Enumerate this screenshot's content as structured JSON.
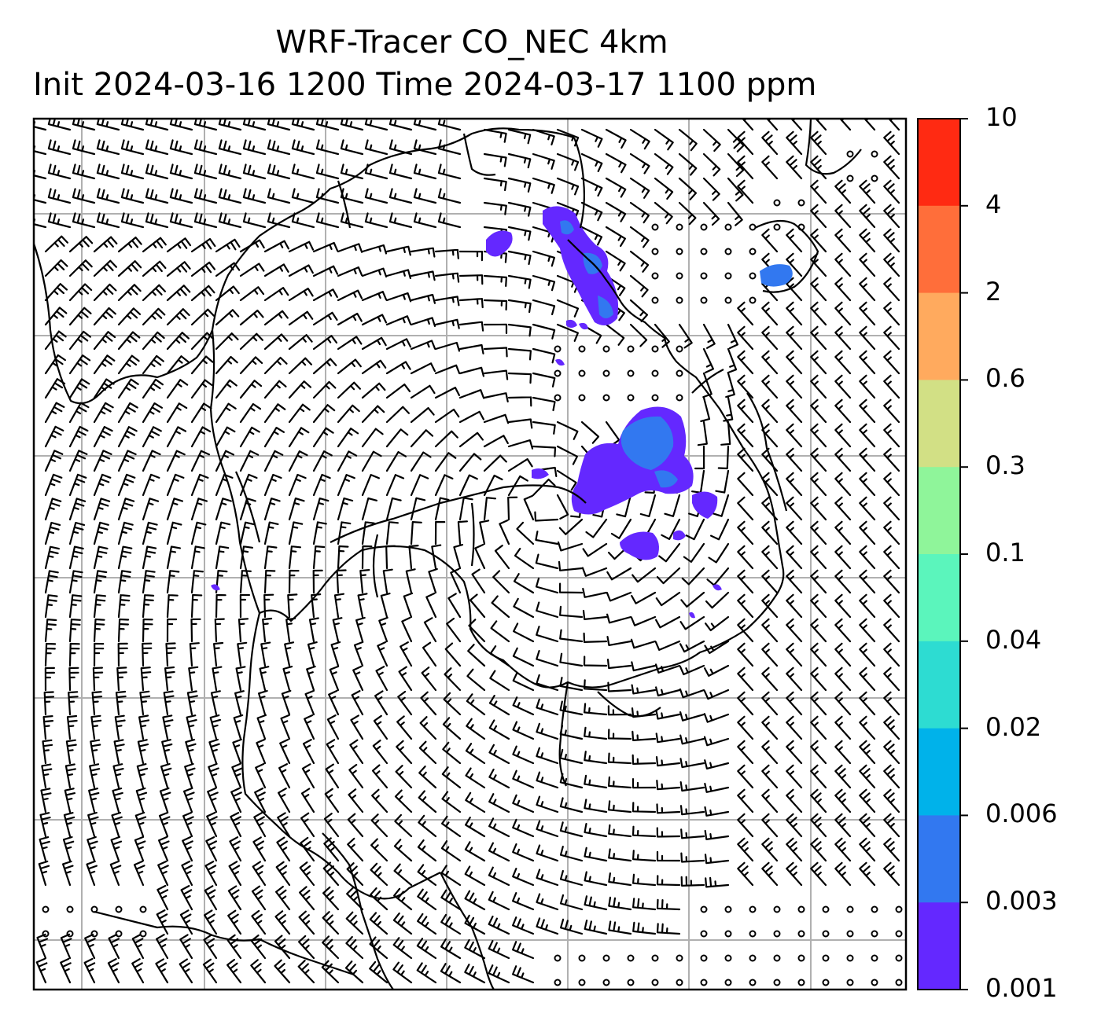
{
  "title": {
    "line1": "WRF-Tracer CO_NEC 4km",
    "line2": "Init 2024-03-16 1200 Time 2024-03-17 1100 ppm"
  },
  "colorbar": {
    "levels": [
      "10",
      "4",
      "2",
      "0.6",
      "0.3",
      "0.1",
      "0.04",
      "0.02",
      "0.006",
      "0.003",
      "0.001"
    ],
    "colors": [
      "#ff2a12",
      "#ff6e3a",
      "#ffaa5e",
      "#d2e085",
      "#8ff59a",
      "#5bf5bc",
      "#2ddcd2",
      "#00b2ea",
      "#3278f0",
      "#6428ff"
    ]
  },
  "map": {
    "field": "CO_NEC tracer concentration (ppm)",
    "overlay": "wind barbs",
    "colors": {
      "background": "#ffffff",
      "gridline": "#b0b0b0",
      "coastline": "#000000",
      "plume_low": "#6428ff",
      "plume_mid": "#3278f0"
    }
  }
}
